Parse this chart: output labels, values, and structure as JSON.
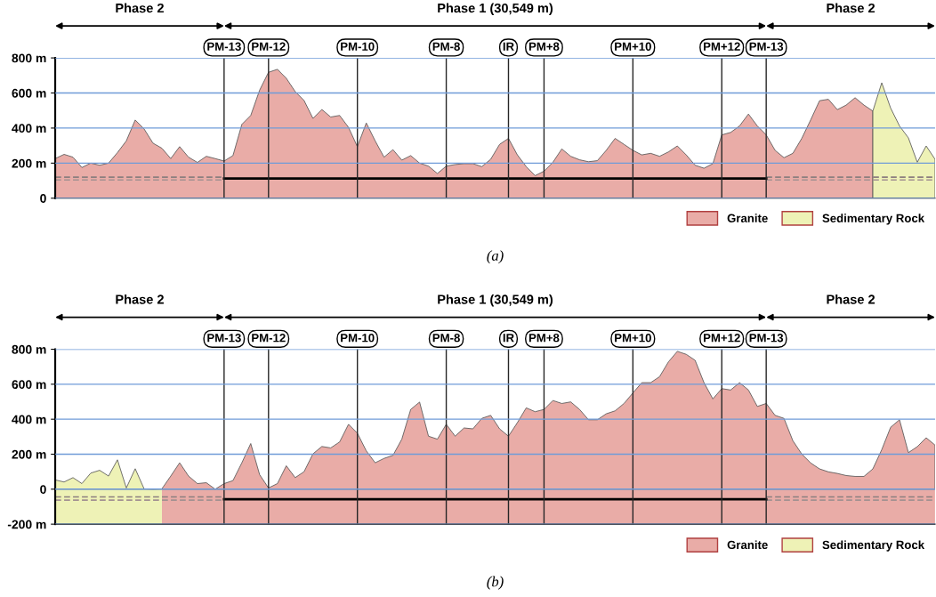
{
  "chart_data": [
    {
      "type": "area",
      "title": "(a)",
      "annotations": [
        "Phase 2",
        "Phase 1 (30,549 m)",
        "Phase 2"
      ],
      "categories": [
        null,
        null,
        null,
        null,
        null,
        null,
        null,
        null,
        null,
        null,
        null,
        null,
        null,
        null,
        null,
        null,
        null,
        null,
        null,
        "PM-13",
        null,
        null,
        null,
        null,
        "PM-12",
        null,
        null,
        null,
        null,
        null,
        null,
        null,
        null,
        null,
        "PM-10",
        null,
        null,
        null,
        null,
        null,
        null,
        null,
        null,
        null,
        "PM-8",
        null,
        null,
        null,
        null,
        null,
        null,
        "IR",
        null,
        null,
        null,
        "PM+8",
        null,
        null,
        null,
        null,
        null,
        null,
        null,
        null,
        null,
        "PM+10",
        null,
        null,
        null,
        null,
        null,
        null,
        null,
        null,
        null,
        "PM+12",
        null,
        null,
        null,
        null,
        "PM-13",
        null,
        null,
        null,
        null,
        null,
        null,
        null,
        null,
        null,
        null,
        null,
        null,
        null,
        null,
        null,
        null,
        null,
        null,
        null
      ],
      "series": [
        {
          "name": "Granite",
          "color": "#e9aca7",
          "values": [
            226,
            250,
            234,
            175,
            200,
            188,
            200,
            260,
            327,
            446,
            395,
            314,
            285,
            226,
            294,
            234,
            204,
            239,
            226,
            212,
            243,
            421,
            472,
            616,
            718,
            735,
            684,
            608,
            557,
            455,
            506,
            463,
            472,
            404,
            294,
            429,
            327,
            234,
            277,
            217,
            243,
            200,
            183,
            141,
            183,
            192,
            197,
            197,
            180,
            222,
            307,
            341,
            247,
            180,
            129,
            154,
            205,
            281,
            239,
            219,
            208,
            214,
            273,
            341,
            307,
            273,
            247,
            256,
            239,
            264,
            298,
            247,
            188,
            171,
            197,
            361,
            375,
            412,
            480,
            412,
            361,
            273,
            231,
            256,
            341,
            446,
            556,
            564,
            505,
            531,
            573,
            531,
            497,
            null,
            null,
            null,
            null,
            null,
            null,
            null
          ]
        },
        {
          "name": "Sedimentary Rock",
          "color": "#eef2b6",
          "values": [
            null,
            null,
            null,
            null,
            null,
            null,
            null,
            null,
            null,
            null,
            null,
            null,
            null,
            null,
            null,
            null,
            null,
            null,
            null,
            null,
            null,
            null,
            null,
            null,
            null,
            null,
            null,
            null,
            null,
            null,
            null,
            null,
            null,
            null,
            null,
            null,
            null,
            null,
            null,
            null,
            null,
            null,
            null,
            null,
            null,
            null,
            null,
            null,
            null,
            null,
            null,
            null,
            null,
            null,
            null,
            null,
            null,
            null,
            null,
            null,
            null,
            null,
            null,
            null,
            null,
            null,
            null,
            null,
            null,
            null,
            null,
            null,
            null,
            null,
            null,
            null,
            null,
            null,
            null,
            null,
            null,
            null,
            null,
            null,
            null,
            null,
            null,
            null,
            null,
            null,
            null,
            null,
            497,
            658,
            514,
            412,
            344,
            205,
            298,
            222
          ]
        },
        {
          "type": "line",
          "color": "#8c7f7f",
          "line_style": "dashed",
          "values": [
            120,
            120,
            120,
            120,
            120,
            120,
            120,
            120,
            120,
            120,
            120,
            120,
            120,
            120,
            120,
            120,
            120,
            120,
            120,
            120,
            null,
            null,
            null,
            null,
            null,
            null,
            null,
            null,
            null,
            null,
            null,
            null,
            null,
            null,
            null,
            null,
            null,
            null,
            null,
            null,
            null,
            null,
            null,
            null,
            null,
            null,
            null,
            null,
            null,
            null,
            null,
            null,
            null,
            null,
            null,
            null,
            null,
            null,
            null,
            null,
            null,
            null,
            null,
            null,
            null,
            null,
            null,
            null,
            null,
            null,
            null,
            null,
            null,
            null,
            null,
            null,
            null,
            null,
            null,
            null,
            120,
            120,
            120,
            120,
            120,
            120,
            120,
            120,
            120,
            120,
            120,
            120,
            120,
            120,
            120,
            120,
            120,
            120,
            120,
            120
          ]
        },
        {
          "type": "line",
          "color": "#a39191",
          "line_style": "dashed",
          "values": [
            104,
            104,
            104,
            104,
            104,
            104,
            104,
            104,
            104,
            104,
            104,
            104,
            104,
            104,
            104,
            104,
            104,
            104,
            104,
            104,
            null,
            null,
            null,
            null,
            null,
            null,
            null,
            null,
            null,
            null,
            null,
            null,
            null,
            null,
            null,
            null,
            null,
            null,
            null,
            null,
            null,
            null,
            null,
            null,
            null,
            null,
            null,
            null,
            null,
            null,
            null,
            null,
            null,
            null,
            null,
            null,
            null,
            null,
            null,
            null,
            null,
            null,
            null,
            null,
            null,
            null,
            null,
            null,
            null,
            null,
            null,
            null,
            null,
            null,
            null,
            null,
            null,
            null,
            null,
            null,
            104,
            104,
            104,
            104,
            104,
            104,
            104,
            104,
            104,
            104,
            104,
            104,
            104,
            104,
            104,
            104,
            104,
            104,
            104,
            104
          ]
        },
        {
          "type": "line",
          "color": "#000000",
          "line_style": "solid",
          "values": [
            null,
            null,
            null,
            null,
            null,
            null,
            null,
            null,
            null,
            null,
            null,
            null,
            null,
            null,
            null,
            null,
            null,
            null,
            null,
            112,
            112,
            112,
            112,
            112,
            112,
            112,
            112,
            112,
            112,
            112,
            112,
            112,
            112,
            112,
            112,
            112,
            112,
            112,
            112,
            112,
            112,
            112,
            112,
            112,
            112,
            112,
            112,
            112,
            112,
            112,
            112,
            112,
            112,
            112,
            112,
            112,
            112,
            112,
            112,
            112,
            112,
            112,
            112,
            112,
            112,
            112,
            112,
            112,
            112,
            112,
            112,
            112,
            112,
            112,
            112,
            112,
            112,
            112,
            112,
            112,
            112,
            null,
            null,
            null,
            null,
            null,
            null,
            null,
            null,
            null,
            null,
            null,
            null,
            null,
            null,
            null,
            null,
            null,
            null,
            null
          ]
        }
      ],
      "ylim": [
        0,
        800
      ],
      "yticks": [
        0,
        {
          "value": 200,
          "label": "200 m"
        },
        {
          "value": 400,
          "label": "400 m"
        },
        {
          "value": 600,
          "label": "600 m"
        },
        {
          "value": 800,
          "label": "800 m"
        }
      ],
      "grid": true,
      "legend": "bottom right"
    },
    {
      "type": "area",
      "title": "(b)",
      "annotations": [
        "Phase 2",
        "Phase 1 (30,549 m)",
        "Phase 2"
      ],
      "categories": [
        null,
        null,
        null,
        null,
        null,
        null,
        null,
        null,
        null,
        null,
        null,
        null,
        null,
        null,
        null,
        null,
        null,
        null,
        null,
        "PM-13",
        null,
        null,
        null,
        null,
        "PM-12",
        null,
        null,
        null,
        null,
        null,
        null,
        null,
        null,
        null,
        "PM-10",
        null,
        null,
        null,
        null,
        null,
        null,
        null,
        null,
        null,
        "PM-8",
        null,
        null,
        null,
        null,
        null,
        null,
        "IR",
        null,
        null,
        null,
        "PM+8",
        null,
        null,
        null,
        null,
        null,
        null,
        null,
        null,
        null,
        "PM+10",
        null,
        null,
        null,
        null,
        null,
        null,
        null,
        null,
        null,
        "PM+12",
        null,
        null,
        null,
        null,
        "PM-13",
        null,
        null,
        null,
        null,
        null,
        null,
        null,
        null,
        null,
        null,
        null,
        null,
        null,
        null,
        null,
        null,
        null,
        null,
        null
      ],
      "series": [
        {
          "name": "Granite",
          "color": "#e9aca7",
          "values": [
            null,
            null,
            null,
            null,
            null,
            null,
            null,
            null,
            null,
            null,
            null,
            null,
            2,
            75,
            151,
            75,
            32,
            37,
            0,
            32,
            49,
            151,
            261,
            83,
            7,
            32,
            134,
            66,
            100,
            202,
            244,
            236,
            270,
            371,
            320,
            219,
            151,
            176,
            193,
            286,
            456,
            498,
            303,
            286,
            371,
            303,
            350,
            345,
            405,
            422,
            345,
            303,
            380,
            465,
            443,
            456,
            507,
            490,
            499,
            456,
            397,
            397,
            431,
            448,
            490,
            550,
            609,
            609,
            643,
            728,
            788,
            771,
            737,
            609,
            516,
            575,
            567,
            609,
            567,
            473,
            490,
            422,
            405,
            277,
            201,
            150,
            116,
            99,
            90,
            78,
            73,
            73,
            116,
            226,
            354,
            397,
            209,
            243,
            294,
            252
          ]
        },
        {
          "name": "Sedimentary Rock",
          "color": "#eef2b6",
          "values": [
            53,
            41,
            66,
            32,
            92,
            108,
            75,
            168,
            7,
            117,
            2,
            0,
            2,
            null,
            null,
            null,
            null,
            null,
            null,
            null,
            null,
            null,
            null,
            null,
            null,
            null,
            null,
            null,
            null,
            null,
            null,
            null,
            null,
            null,
            null,
            null,
            null,
            null,
            null,
            null,
            null,
            null,
            null,
            null,
            null,
            null,
            null,
            null,
            null,
            null,
            null,
            null,
            null,
            null,
            null,
            null,
            null,
            null,
            null,
            null,
            null,
            null,
            null,
            null,
            null,
            null,
            null,
            null,
            null,
            null,
            null,
            null,
            null,
            null,
            null,
            null,
            null,
            null,
            null,
            null,
            null,
            null,
            null,
            null,
            null,
            null,
            null,
            null,
            null,
            null,
            null,
            null,
            null,
            null,
            null,
            null,
            null,
            null,
            null,
            null
          ]
        },
        {
          "type": "line",
          "color": "#8c7f7f",
          "line_style": "dashed",
          "values": [
            -44,
            -44,
            -44,
            -44,
            -44,
            -44,
            -44,
            -44,
            -44,
            -44,
            -44,
            -44,
            -44,
            -44,
            -44,
            -44,
            -44,
            -44,
            -44,
            -44,
            null,
            null,
            null,
            null,
            null,
            null,
            null,
            null,
            null,
            null,
            null,
            null,
            null,
            null,
            null,
            null,
            null,
            null,
            null,
            null,
            null,
            null,
            null,
            null,
            null,
            null,
            null,
            null,
            null,
            null,
            null,
            null,
            null,
            null,
            null,
            null,
            null,
            null,
            null,
            null,
            null,
            null,
            null,
            null,
            null,
            null,
            null,
            null,
            null,
            null,
            null,
            null,
            null,
            null,
            null,
            null,
            null,
            null,
            null,
            null,
            -44,
            -44,
            -44,
            -44,
            -44,
            -44,
            -44,
            -44,
            -44,
            -44,
            -44,
            -44,
            -44,
            -44,
            -44,
            -44,
            -44,
            -44,
            -44,
            -44
          ]
        },
        {
          "type": "line",
          "color": "#a39191",
          "line_style": "dashed",
          "values": [
            -63,
            -63,
            -63,
            -63,
            -63,
            -63,
            -63,
            -63,
            -63,
            -63,
            -63,
            -63,
            -63,
            -63,
            -63,
            -63,
            -63,
            -63,
            -63,
            -63,
            null,
            null,
            null,
            null,
            null,
            null,
            null,
            null,
            null,
            null,
            null,
            null,
            null,
            null,
            null,
            null,
            null,
            null,
            null,
            null,
            null,
            null,
            null,
            null,
            null,
            null,
            null,
            null,
            null,
            null,
            null,
            null,
            null,
            null,
            null,
            null,
            null,
            null,
            null,
            null,
            null,
            null,
            null,
            null,
            null,
            null,
            null,
            null,
            null,
            null,
            null,
            null,
            null,
            null,
            null,
            null,
            null,
            null,
            null,
            null,
            -63,
            -63,
            -63,
            -63,
            -63,
            -63,
            -63,
            -63,
            -63,
            -63,
            -63,
            -63,
            -63,
            -63,
            -63,
            -63,
            -63,
            -63,
            -63,
            -63
          ]
        },
        {
          "type": "line",
          "color": "#000000",
          "line_style": "solid",
          "values": [
            null,
            null,
            null,
            null,
            null,
            null,
            null,
            null,
            null,
            null,
            null,
            null,
            null,
            null,
            null,
            null,
            null,
            null,
            null,
            -58,
            -58,
            -58,
            -58,
            -58,
            -58,
            -58,
            -58,
            -58,
            -58,
            -58,
            -58,
            -58,
            -58,
            -58,
            -58,
            -58,
            -58,
            -58,
            -58,
            -58,
            -58,
            -58,
            -58,
            -58,
            -58,
            -58,
            -58,
            -58,
            -58,
            -58,
            -58,
            -58,
            -58,
            -58,
            -58,
            -58,
            -58,
            -58,
            -58,
            -58,
            -58,
            -58,
            -58,
            -58,
            -58,
            -58,
            -58,
            -58,
            -58,
            -58,
            -58,
            -58,
            -58,
            -58,
            -58,
            -58,
            -58,
            -58,
            -58,
            -58,
            -58,
            null,
            null,
            null,
            null,
            null,
            null,
            null,
            null,
            null,
            null,
            null,
            null,
            null,
            null,
            null,
            null,
            null,
            null,
            null
          ]
        }
      ],
      "ylim": [
        -200,
        800
      ],
      "yticks": [
        {
          "value": -200,
          "label": "-200 m"
        },
        0,
        {
          "value": 200,
          "label": "200 m"
        },
        {
          "value": 400,
          "label": "400 m"
        },
        {
          "value": 600,
          "label": "600 m"
        },
        {
          "value": 800,
          "label": "800 m"
        }
      ],
      "grid": true,
      "legend": "bottom right"
    }
  ]
}
